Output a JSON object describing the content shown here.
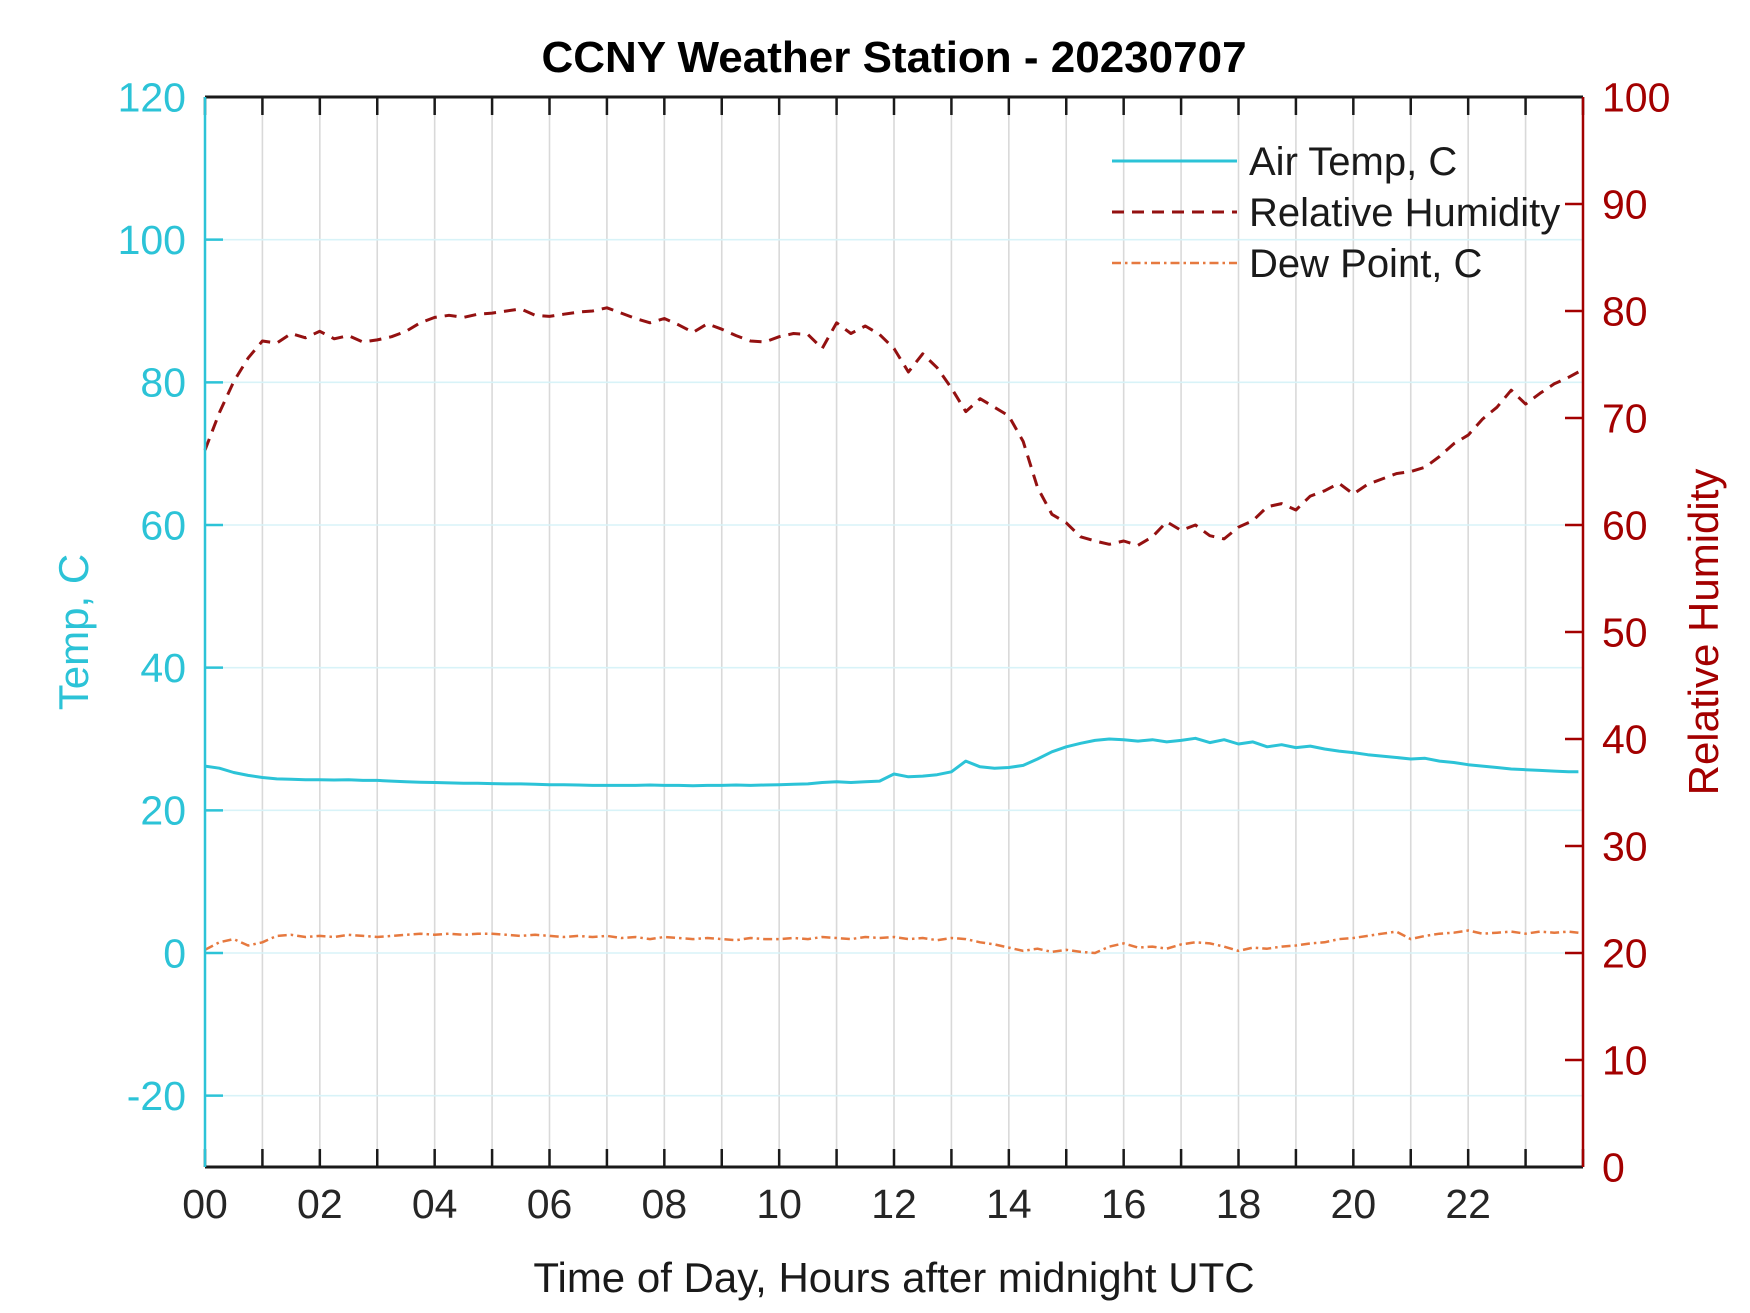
{
  "title": "CCNY Weather Station - 20230707",
  "x_axis": {
    "label": "Time of Day, Hours after midnight UTC",
    "range": [
      0,
      24
    ],
    "tick_labels": [
      "00",
      "02",
      "04",
      "06",
      "08",
      "10",
      "12",
      "14",
      "16",
      "18",
      "20",
      "22"
    ],
    "tick_label_hours": [
      0,
      2,
      4,
      6,
      8,
      10,
      12,
      14,
      16,
      18,
      20,
      22
    ],
    "minor_tick_every_hours": 1,
    "color": "#262626"
  },
  "left_axis": {
    "label": "Temp, C",
    "range": [
      -30,
      120
    ],
    "ticks": [
      -20,
      0,
      20,
      40,
      60,
      80,
      100,
      120
    ],
    "color": "#2cc3d7"
  },
  "right_axis": {
    "label": "Relative Humidity",
    "range": [
      0,
      100
    ],
    "ticks": [
      0,
      10,
      20,
      30,
      40,
      50,
      60,
      70,
      80,
      90,
      100
    ],
    "color": "#a30000"
  },
  "legend": {
    "items": [
      {
        "label": "Air Temp, C",
        "series": "air_temp"
      },
      {
        "label": "Relative Humidity",
        "series": "relative_humidity"
      },
      {
        "label": "Dew Point, C",
        "series": "dew_point"
      }
    ]
  },
  "style": {
    "background": "#ffffff",
    "grid_x_color": "#d9d9d9",
    "grid_y_color": "#d8f3f8",
    "frame_color": "#1a1a1a"
  },
  "chart_data": {
    "type": "line",
    "title": "CCNY Weather Station - 20230707",
    "xlabel": "Time of Day, Hours after midnight UTC",
    "x_range_hours": [
      0,
      24
    ],
    "left_ylim": [
      -30,
      120
    ],
    "right_ylim": [
      0,
      100
    ],
    "grid": "on",
    "legend_position": "inside-top-right",
    "x_hours": [
      0,
      0.25,
      0.5,
      0.75,
      1,
      1.25,
      1.5,
      1.75,
      2,
      2.25,
      2.5,
      2.75,
      3,
      3.25,
      3.5,
      3.75,
      4,
      4.25,
      4.5,
      4.75,
      5,
      5.25,
      5.5,
      5.75,
      6,
      6.25,
      6.5,
      6.75,
      7,
      7.25,
      7.5,
      7.75,
      8,
      8.25,
      8.5,
      8.75,
      9,
      9.25,
      9.5,
      9.75,
      10,
      10.25,
      10.5,
      10.75,
      11,
      11.25,
      11.5,
      11.75,
      12,
      12.25,
      12.5,
      12.75,
      13,
      13.25,
      13.5,
      13.75,
      14,
      14.25,
      14.5,
      14.75,
      15,
      15.25,
      15.5,
      15.75,
      16,
      16.25,
      16.5,
      16.75,
      17,
      17.25,
      17.5,
      17.75,
      18,
      18.25,
      18.5,
      18.75,
      19,
      19.25,
      19.5,
      19.75,
      20,
      20.25,
      20.5,
      20.75,
      21,
      21.25,
      21.5,
      21.75,
      22,
      22.25,
      22.5,
      22.75,
      23,
      23.25,
      23.5,
      23.75,
      23.92
    ],
    "series": [
      {
        "name": "Air Temp, C",
        "axis": "left",
        "units": "C",
        "color": "#2cc3d7",
        "line_style": "solid",
        "y": [
          26.2,
          25.9,
          25.3,
          24.9,
          24.6,
          24.4,
          24.35,
          24.3,
          24.3,
          24.25,
          24.3,
          24.2,
          24.2,
          24.1,
          24.0,
          23.95,
          23.9,
          23.85,
          23.8,
          23.8,
          23.75,
          23.7,
          23.7,
          23.65,
          23.6,
          23.6,
          23.55,
          23.5,
          23.5,
          23.5,
          23.5,
          23.55,
          23.5,
          23.5,
          23.45,
          23.5,
          23.5,
          23.55,
          23.5,
          23.55,
          23.6,
          23.65,
          23.7,
          23.9,
          24.0,
          23.9,
          24.0,
          24.1,
          25.1,
          24.7,
          24.8,
          25.0,
          25.4,
          26.9,
          26.1,
          25.9,
          26.0,
          26.3,
          27.2,
          28.2,
          28.9,
          29.4,
          29.8,
          30.0,
          29.9,
          29.7,
          29.9,
          29.6,
          29.8,
          30.1,
          29.5,
          29.9,
          29.3,
          29.6,
          28.9,
          29.2,
          28.8,
          29.0,
          28.6,
          28.3,
          28.1,
          27.8,
          27.6,
          27.4,
          27.2,
          27.3,
          26.9,
          26.7,
          26.4,
          26.2,
          26.0,
          25.8,
          25.7,
          25.6,
          25.5,
          25.4,
          25.4
        ]
      },
      {
        "name": "Relative Humidity",
        "axis": "right",
        "units": "%",
        "color": "#941111",
        "line_style": "dashed",
        "y": [
          67.0,
          70.5,
          73.4,
          75.6,
          77.2,
          77.0,
          77.9,
          77.5,
          78.1,
          77.4,
          77.7,
          77.1,
          77.3,
          77.6,
          78.1,
          78.9,
          79.4,
          79.6,
          79.4,
          79.7,
          79.8,
          80.0,
          80.2,
          79.6,
          79.5,
          79.7,
          79.9,
          80.0,
          80.3,
          79.8,
          79.3,
          78.9,
          79.3,
          78.7,
          78.0,
          78.8,
          78.3,
          77.7,
          77.2,
          77.1,
          77.6,
          77.9,
          77.8,
          76.5,
          78.9,
          77.9,
          78.6,
          77.8,
          76.5,
          74.3,
          76.0,
          74.7,
          72.8,
          70.6,
          71.8,
          71.0,
          70.2,
          67.8,
          63.5,
          61.0,
          60.2,
          58.9,
          58.5,
          58.2,
          58.5,
          58.1,
          58.9,
          60.3,
          59.5,
          60.0,
          59.0,
          58.7,
          59.8,
          60.4,
          61.7,
          62.0,
          61.4,
          62.7,
          63.2,
          63.9,
          62.9,
          63.8,
          64.3,
          64.8,
          65.0,
          65.4,
          66.4,
          67.6,
          68.4,
          69.9,
          71.0,
          72.6,
          71.3,
          72.3,
          73.2,
          73.8,
          74.3
        ]
      },
      {
        "name": "Dew Point, C",
        "axis": "right",
        "units": "C",
        "color": "#e6793f",
        "line_style": "dash-dot",
        "y": [
          20.3,
          21.0,
          21.3,
          20.7,
          21.0,
          21.6,
          21.7,
          21.5,
          21.6,
          21.5,
          21.7,
          21.6,
          21.5,
          21.6,
          21.7,
          21.8,
          21.7,
          21.8,
          21.7,
          21.8,
          21.8,
          21.7,
          21.6,
          21.7,
          21.6,
          21.5,
          21.6,
          21.5,
          21.6,
          21.4,
          21.5,
          21.3,
          21.5,
          21.4,
          21.3,
          21.4,
          21.3,
          21.2,
          21.4,
          21.3,
          21.3,
          21.4,
          21.3,
          21.5,
          21.4,
          21.3,
          21.5,
          21.4,
          21.5,
          21.3,
          21.4,
          21.2,
          21.4,
          21.3,
          21.0,
          20.8,
          20.5,
          20.2,
          20.4,
          20.1,
          20.3,
          20.1,
          20.0,
          20.6,
          20.9,
          20.5,
          20.6,
          20.4,
          20.8,
          21.0,
          20.9,
          20.6,
          20.2,
          20.5,
          20.4,
          20.6,
          20.7,
          20.9,
          21.0,
          21.3,
          21.4,
          21.6,
          21.8,
          22.0,
          21.3,
          21.6,
          21.8,
          21.9,
          22.1,
          21.8,
          21.9,
          22.0,
          21.8,
          22.0,
          21.9,
          22.0,
          21.9
        ]
      }
    ]
  }
}
